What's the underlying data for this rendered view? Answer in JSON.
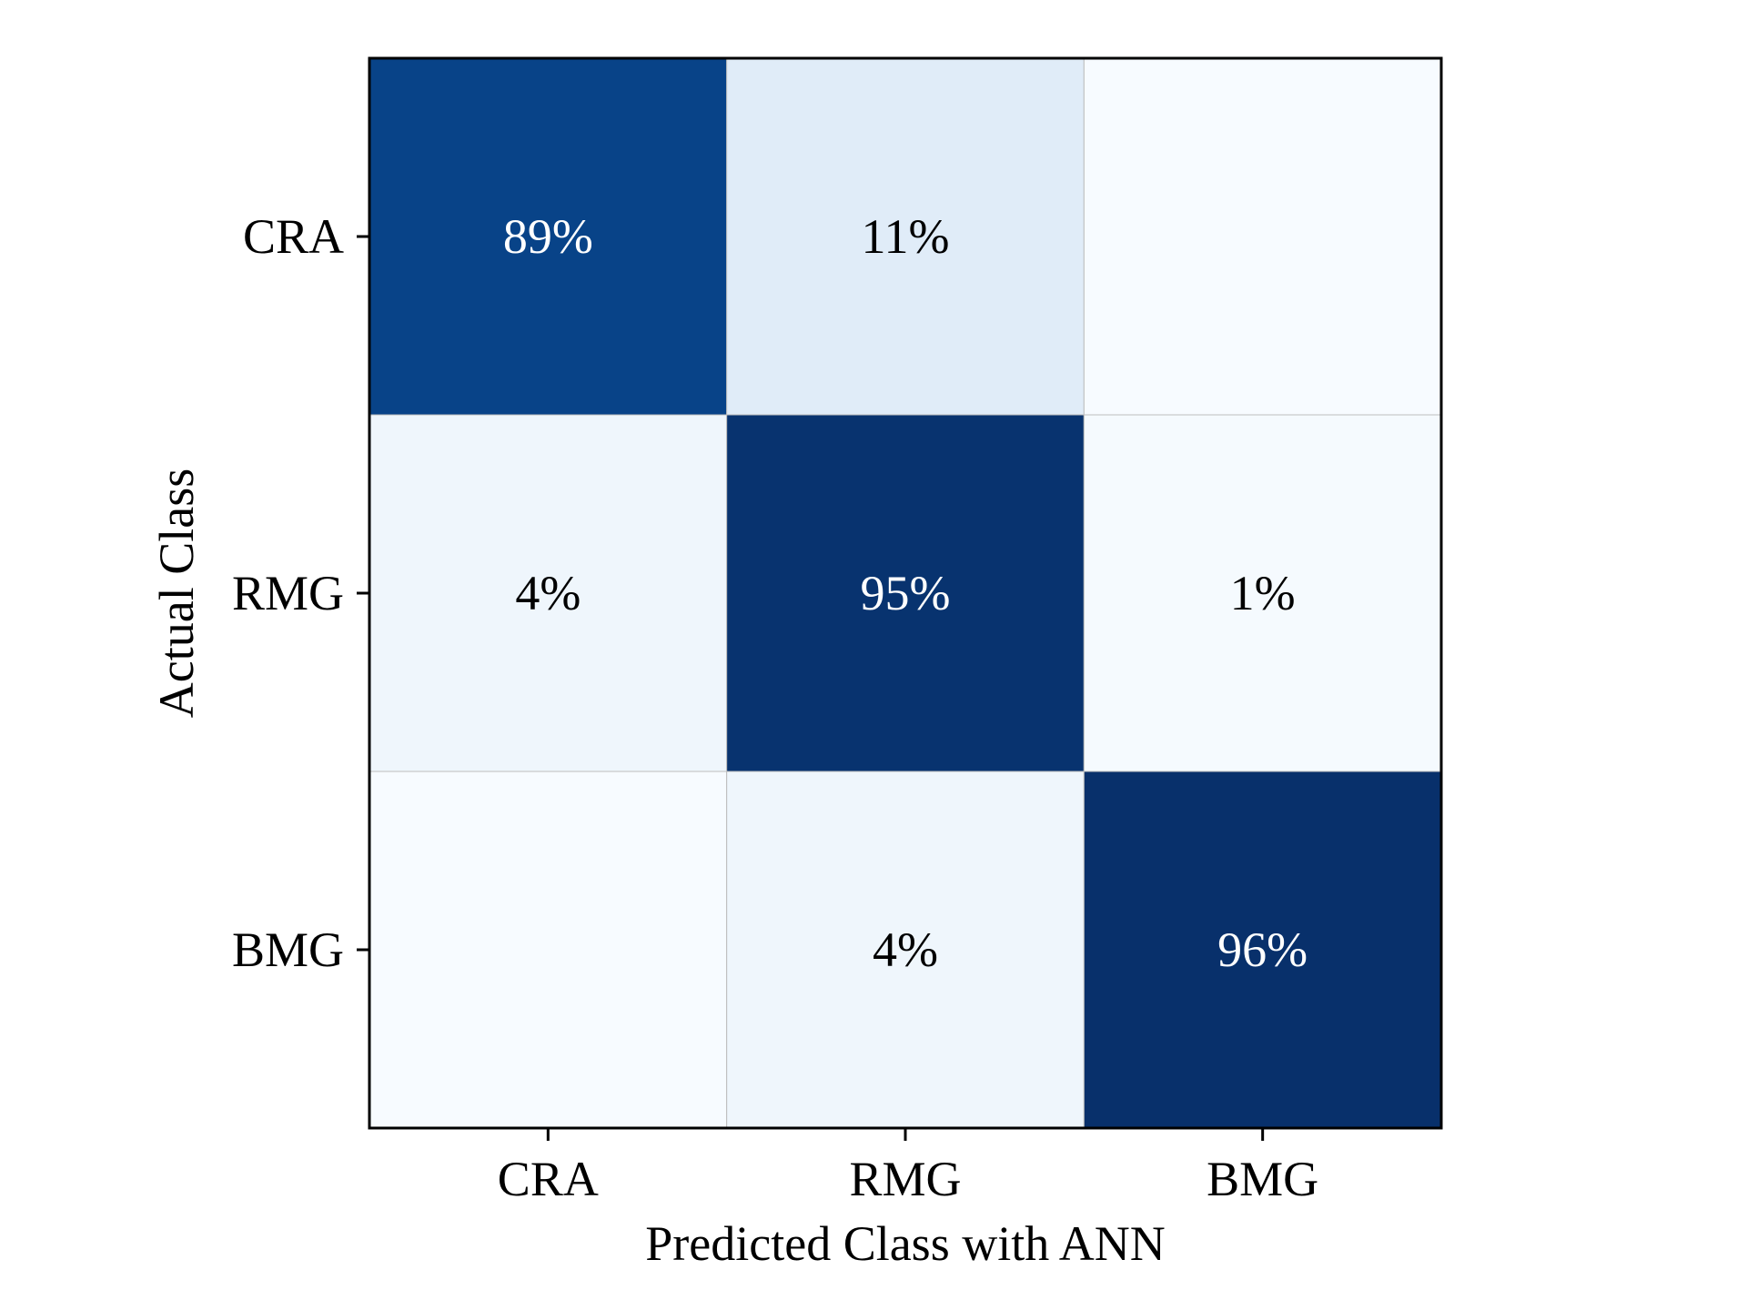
{
  "chart_data": {
    "type": "heatmap",
    "title": "",
    "xlabel": "Predicted Class with ANN",
    "ylabel": "Actual Class",
    "x_categories": [
      "CRA",
      "RMG",
      "BMG"
    ],
    "y_categories": [
      "CRA",
      "RMG",
      "BMG"
    ],
    "values": [
      [
        0.89,
        0.11,
        0.0
      ],
      [
        0.04,
        0.95,
        0.01
      ],
      [
        0.0,
        0.04,
        0.96
      ]
    ],
    "cell_labels": [
      [
        "89%",
        "11%",
        ""
      ],
      [
        "4%",
        "95%",
        "1%"
      ],
      [
        "",
        "4%",
        "96%"
      ]
    ],
    "colormap": "Blues",
    "colors": {
      "low": "#f7fbff",
      "high": "#08306b",
      "text_dark": "#000000",
      "text_light": "#ffffff"
    },
    "colorbar": false,
    "grid": true
  }
}
